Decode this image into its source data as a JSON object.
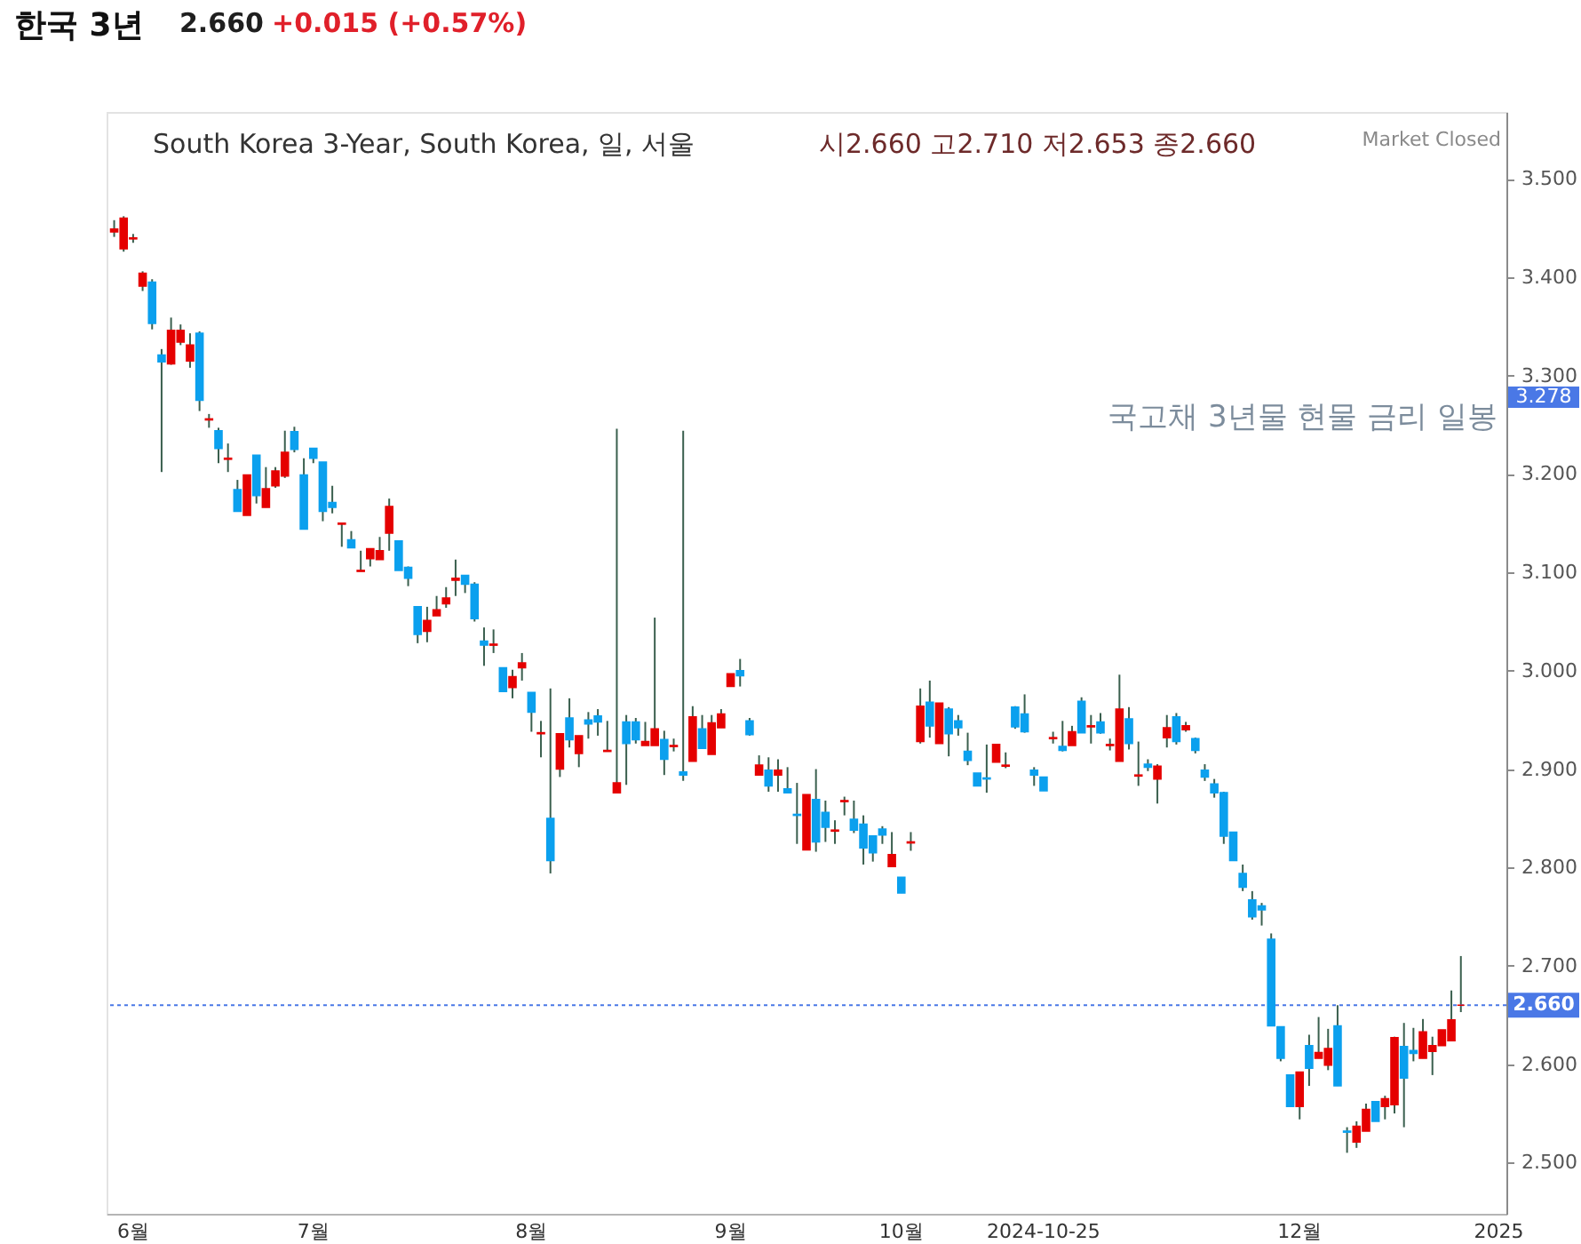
{
  "chart_data": {
    "type": "candlestick",
    "title": "한국 3년",
    "subtitle": "South Korea 3-Year, South Korea, 일, 서울",
    "annotations": [
      "2.660",
      "+0.015 (+0.57%)",
      "시2.660 고2.710 저2.653 종2.660",
      "Market Closed",
      "국고채 3년물 현물 금리 일봉",
      {
        "text": "3.278",
        "y": 3.278
      }
    ],
    "categories": [
      null,
      null,
      "6월",
      null,
      null,
      null,
      null,
      null,
      null,
      null,
      null,
      null,
      null,
      null,
      null,
      null,
      null,
      null,
      null,
      null,
      null,
      "7월",
      null,
      null,
      null,
      null,
      null,
      null,
      null,
      null,
      null,
      null,
      null,
      null,
      null,
      null,
      null,
      null,
      null,
      null,
      null,
      null,
      null,
      null,
      "8월",
      null,
      null,
      null,
      null,
      null,
      null,
      null,
      null,
      null,
      null,
      null,
      null,
      null,
      null,
      null,
      null,
      null,
      null,
      null,
      null,
      "9월",
      null,
      null,
      null,
      null,
      null,
      null,
      null,
      null,
      null,
      null,
      null,
      null,
      null,
      null,
      null,
      null,
      null,
      "10월",
      null,
      null,
      null,
      null,
      null,
      null,
      null,
      null,
      null,
      null,
      null,
      null,
      null,
      null,
      "2024-10-25",
      null,
      null,
      null,
      null,
      null,
      null,
      null,
      null,
      null,
      null,
      null,
      null,
      null,
      null,
      null,
      null,
      null,
      null,
      null,
      null,
      null,
      null,
      null,
      null,
      null,
      null,
      "12월",
      null,
      null,
      null,
      null,
      null,
      null,
      null,
      null,
      null,
      null,
      null,
      null,
      null,
      null,
      null,
      null,
      null,
      null,
      null,
      null,
      "2025"
    ],
    "ohlc": [
      [
        3.446,
        3.458,
        3.441,
        3.449
      ],
      [
        3.429,
        3.462,
        3.426,
        3.46
      ],
      [
        3.439,
        3.444,
        3.435,
        3.44
      ],
      [
        3.391,
        3.406,
        3.386,
        3.404
      ],
      [
        3.395,
        3.398,
        3.347,
        3.353
      ],
      [
        3.321,
        3.327,
        3.202,
        3.314
      ],
      [
        3.312,
        3.359,
        3.311,
        3.346
      ],
      [
        3.334,
        3.352,
        3.331,
        3.346
      ],
      [
        3.315,
        3.343,
        3.308,
        3.331
      ],
      [
        3.343,
        3.345,
        3.264,
        3.275
      ],
      [
        3.255,
        3.261,
        3.247,
        3.256
      ],
      [
        3.244,
        3.247,
        3.211,
        3.226
      ],
      [
        3.215,
        3.231,
        3.202,
        3.216
      ],
      [
        3.184,
        3.194,
        3.162,
        3.162
      ],
      [
        3.158,
        3.199,
        3.158,
        3.199
      ],
      [
        3.219,
        3.219,
        3.17,
        3.178
      ],
      [
        3.166,
        3.207,
        3.166,
        3.185
      ],
      [
        3.188,
        3.207,
        3.186,
        3.203
      ],
      [
        3.198,
        3.244,
        3.196,
        3.222
      ],
      [
        3.243,
        3.248,
        3.222,
        3.225
      ],
      [
        3.199,
        3.216,
        3.144,
        3.144
      ],
      [
        3.226,
        3.226,
        3.211,
        3.216
      ],
      [
        3.212,
        3.212,
        3.152,
        3.162
      ],
      [
        3.171,
        3.188,
        3.16,
        3.166
      ],
      [
        3.149,
        3.15,
        3.126,
        3.15
      ],
      [
        3.133,
        3.142,
        3.125,
        3.125
      ],
      [
        3.101,
        3.122,
        3.101,
        3.102
      ],
      [
        3.114,
        3.124,
        3.106,
        3.124
      ],
      [
        3.113,
        3.136,
        3.113,
        3.122
      ],
      [
        3.14,
        3.175,
        3.122,
        3.167
      ],
      [
        3.132,
        3.132,
        3.102,
        3.102
      ],
      [
        3.105,
        3.106,
        3.086,
        3.094
      ],
      [
        3.065,
        3.065,
        3.028,
        3.037
      ],
      [
        3.04,
        3.065,
        3.029,
        3.051
      ],
      [
        3.056,
        3.076,
        3.056,
        3.062
      ],
      [
        3.068,
        3.085,
        3.064,
        3.074
      ],
      [
        3.092,
        3.113,
        3.076,
        3.094
      ],
      [
        3.097,
        3.097,
        3.079,
        3.088
      ],
      [
        3.088,
        3.09,
        3.05,
        3.053
      ],
      [
        3.03,
        3.044,
        3.005,
        3.026
      ],
      [
        3.026,
        3.042,
        3.018,
        3.027
      ],
      [
        3.003,
        3.003,
        2.979,
        2.979
      ],
      [
        2.983,
        3.001,
        2.972,
        2.994
      ],
      [
        3.003,
        3.018,
        2.99,
        3.008
      ],
      [
        2.978,
        2.978,
        2.938,
        2.958
      ],
      [
        2.936,
        2.949,
        2.912,
        2.937
      ],
      [
        2.85,
        2.982,
        2.794,
        2.807
      ],
      [
        2.9,
        2.936,
        2.892,
        2.936
      ],
      [
        2.952,
        2.972,
        2.922,
        2.93
      ],
      [
        2.916,
        2.934,
        2.902,
        2.934
      ],
      [
        2.95,
        2.958,
        2.931,
        2.946
      ],
      [
        2.954,
        2.961,
        2.934,
        2.948
      ],
      [
        2.918,
        2.949,
        2.918,
        2.919
      ],
      [
        2.876,
        3.246,
        2.876,
        2.886
      ],
      [
        2.948,
        2.955,
        2.884,
        2.926
      ],
      [
        2.948,
        2.952,
        2.926,
        2.93
      ],
      [
        2.924,
        2.948,
        2.924,
        2.928
      ],
      [
        2.924,
        3.054,
        2.924,
        2.941
      ],
      [
        2.93,
        2.939,
        2.894,
        2.91
      ],
      [
        2.923,
        2.931,
        2.918,
        2.924
      ],
      [
        2.897,
        3.244,
        2.888,
        2.894
      ],
      [
        2.908,
        2.964,
        2.908,
        2.953
      ],
      [
        2.941,
        2.955,
        2.921,
        2.921
      ],
      [
        2.915,
        2.955,
        2.915,
        2.947
      ],
      [
        2.942,
        2.961,
        2.942,
        2.956
      ],
      [
        2.984,
        2.997,
        2.984,
        2.997
      ],
      [
        3.0,
        3.012,
        2.984,
        2.995
      ],
      [
        2.949,
        2.952,
        2.934,
        2.935
      ],
      [
        2.894,
        2.914,
        2.894,
        2.904
      ],
      [
        2.899,
        2.912,
        2.877,
        2.883
      ],
      [
        2.894,
        2.91,
        2.877,
        2.899
      ],
      [
        2.88,
        2.902,
        2.876,
        2.876
      ],
      [
        2.854,
        2.886,
        2.824,
        2.853
      ],
      [
        2.818,
        2.874,
        2.818,
        2.874
      ],
      [
        2.869,
        2.9,
        2.816,
        2.826
      ],
      [
        2.856,
        2.868,
        2.826,
        2.841
      ],
      [
        2.837,
        2.848,
        2.824,
        2.838
      ],
      [
        2.867,
        2.872,
        2.853,
        2.868
      ],
      [
        2.849,
        2.868,
        2.835,
        2.838
      ],
      [
        2.844,
        2.853,
        2.803,
        2.82
      ],
      [
        2.832,
        2.832,
        2.806,
        2.815
      ],
      [
        2.839,
        2.842,
        2.824,
        2.833
      ],
      [
        2.801,
        2.836,
        2.801,
        2.813
      ],
      [
        2.79,
        2.79,
        2.774,
        2.774
      ],
      [
        2.825,
        2.836,
        2.817,
        2.826
      ],
      [
        2.928,
        2.982,
        2.926,
        2.964
      ],
      [
        2.968,
        2.99,
        2.932,
        2.944
      ],
      [
        2.926,
        2.967,
        2.926,
        2.967
      ],
      [
        2.961,
        2.963,
        2.913,
        2.936
      ],
      [
        2.949,
        2.955,
        2.934,
        2.942
      ],
      [
        2.918,
        2.937,
        2.904,
        2.909
      ],
      [
        2.896,
        2.896,
        2.883,
        2.883
      ],
      [
        2.891,
        2.925,
        2.876,
        2.89
      ],
      [
        2.907,
        2.925,
        2.907,
        2.925
      ],
      [
        2.903,
        2.917,
        2.901,
        2.904
      ],
      [
        2.963,
        2.964,
        2.941,
        2.943
      ],
      [
        2.956,
        2.976,
        2.937,
        2.938
      ],
      [
        2.899,
        2.902,
        2.883,
        2.894
      ],
      [
        2.892,
        2.892,
        2.878,
        2.878
      ],
      [
        2.931,
        2.938,
        2.926,
        2.932
      ],
      [
        2.923,
        2.949,
        2.918,
        2.919
      ],
      [
        2.924,
        2.944,
        2.924,
        2.938
      ],
      [
        2.969,
        2.973,
        2.937,
        2.937
      ],
      [
        2.943,
        2.955,
        2.926,
        2.944
      ],
      [
        2.948,
        2.957,
        2.936,
        2.937
      ],
      [
        2.924,
        2.931,
        2.919,
        2.925
      ],
      [
        2.908,
        2.996,
        2.908,
        2.961
      ],
      [
        2.951,
        2.963,
        2.92,
        2.926
      ],
      [
        2.893,
        2.928,
        2.883,
        2.894
      ],
      [
        2.905,
        2.91,
        2.898,
        2.902
      ],
      [
        2.89,
        2.905,
        2.865,
        2.903
      ],
      [
        2.932,
        2.955,
        2.922,
        2.942
      ],
      [
        2.953,
        2.957,
        2.925,
        2.928
      ],
      [
        2.94,
        2.948,
        2.938,
        2.944
      ],
      [
        2.931,
        2.932,
        2.916,
        2.919
      ],
      [
        2.899,
        2.905,
        2.888,
        2.892
      ],
      [
        2.885,
        2.89,
        2.871,
        2.876
      ],
      [
        2.876,
        2.877,
        2.824,
        2.832
      ],
      [
        2.836,
        2.836,
        2.807,
        2.807
      ],
      [
        2.794,
        2.803,
        2.776,
        2.78
      ],
      [
        2.767,
        2.776,
        2.747,
        2.75
      ],
      [
        2.761,
        2.764,
        2.741,
        2.757
      ],
      [
        2.727,
        2.733,
        2.639,
        2.639
      ],
      [
        2.638,
        2.638,
        2.603,
        2.606
      ],
      [
        2.589,
        2.589,
        2.557,
        2.557
      ],
      [
        2.557,
        2.592,
        2.544,
        2.592
      ],
      [
        2.619,
        2.63,
        2.578,
        2.596
      ],
      [
        2.606,
        2.648,
        2.606,
        2.612
      ],
      [
        2.599,
        2.636,
        2.594,
        2.616
      ],
      [
        2.639,
        2.66,
        2.578,
        2.578
      ],
      [
        2.532,
        2.536,
        2.51,
        2.531
      ],
      [
        2.521,
        2.542,
        2.515,
        2.537
      ],
      [
        2.532,
        2.56,
        2.532,
        2.554
      ],
      [
        2.562,
        2.562,
        2.542,
        2.542
      ],
      [
        2.557,
        2.568,
        2.544,
        2.565
      ],
      [
        2.559,
        2.628,
        2.55,
        2.627
      ],
      [
        2.618,
        2.642,
        2.536,
        2.586
      ],
      [
        2.614,
        2.637,
        2.603,
        2.611
      ],
      [
        2.606,
        2.646,
        2.606,
        2.633
      ],
      [
        2.613,
        2.628,
        2.589,
        2.619
      ],
      [
        2.619,
        2.635,
        2.619,
        2.635
      ],
      [
        2.624,
        2.675,
        2.624,
        2.645
      ],
      [
        2.66,
        2.71,
        2.653,
        2.66
      ],
      null,
      null,
      null,
      null
    ],
    "colors": [
      "#e50000",
      "#e50000",
      "#e50000",
      "#e50000",
      "#0ba0ee",
      "#0ba0ee",
      "#e50000",
      "#e50000",
      "#e50000",
      "#0ba0ee",
      "#e50000",
      "#0ba0ee",
      "#e50000",
      "#0ba0ee",
      "#e50000",
      "#0ba0ee",
      "#e50000",
      "#e50000",
      "#e50000",
      "#0ba0ee",
      "#0ba0ee",
      "#0ba0ee",
      "#0ba0ee",
      "#0ba0ee",
      "#e50000",
      "#0ba0ee",
      "#e50000",
      "#e50000",
      "#e50000",
      "#e50000",
      "#0ba0ee",
      "#0ba0ee",
      "#0ba0ee",
      "#e50000",
      "#e50000",
      "#e50000",
      "#e50000",
      "#0ba0ee",
      "#0ba0ee",
      "#0ba0ee",
      "#e50000",
      "#0ba0ee",
      "#e50000",
      "#e50000",
      "#0ba0ee",
      "#e50000",
      "#0ba0ee",
      "#e50000",
      "#0ba0ee",
      "#e50000",
      "#0ba0ee",
      "#0ba0ee",
      "#e50000",
      "#e50000",
      "#0ba0ee",
      "#0ba0ee",
      "#e50000",
      "#e50000",
      "#0ba0ee",
      "#e50000",
      "#0ba0ee",
      "#e50000",
      "#0ba0ee",
      "#e50000",
      "#e50000",
      "#e50000",
      "#0ba0ee",
      "#0ba0ee",
      "#e50000",
      "#0ba0ee",
      "#e50000",
      "#0ba0ee",
      "#0ba0ee",
      "#e50000",
      "#0ba0ee",
      "#0ba0ee",
      "#e50000",
      "#e50000",
      "#0ba0ee",
      "#0ba0ee",
      "#0ba0ee",
      "#0ba0ee",
      "#e50000",
      "#0ba0ee",
      "#e50000",
      "#e50000",
      "#0ba0ee",
      "#e50000",
      "#0ba0ee",
      "#0ba0ee",
      "#0ba0ee",
      "#0ba0ee",
      "#0ba0ee",
      "#e50000",
      "#e50000",
      "#0ba0ee",
      "#0ba0ee",
      "#0ba0ee",
      "#0ba0ee",
      "#e50000",
      "#0ba0ee",
      "#e50000",
      "#0ba0ee",
      "#e50000",
      "#0ba0ee",
      "#e50000",
      "#e50000",
      "#0ba0ee",
      "#e50000",
      "#0ba0ee",
      "#e50000",
      "#e50000",
      "#0ba0ee",
      "#e50000",
      "#0ba0ee",
      "#0ba0ee",
      "#0ba0ee",
      "#0ba0ee",
      "#0ba0ee",
      "#0ba0ee",
      "#0ba0ee",
      "#0ba0ee",
      "#0ba0ee",
      "#0ba0ee",
      "#0ba0ee",
      "#e50000",
      "#0ba0ee",
      "#e50000",
      "#e50000",
      "#0ba0ee",
      "#0ba0ee",
      "#e50000",
      "#e50000",
      "#0ba0ee",
      "#e50000",
      "#e50000",
      "#0ba0ee",
      "#0ba0ee",
      "#e50000",
      "#e50000",
      "#e50000",
      "#e50000",
      "#e50000",
      null,
      null,
      null,
      null
    ],
    "ylim": [
      2.448,
      3.568
    ],
    "yticks": [
      {
        "value": 2.5,
        "label": "2.500"
      },
      {
        "value": 2.6,
        "label": "2.600"
      },
      {
        "value": 2.7,
        "label": "2.700"
      },
      {
        "value": 2.8,
        "label": "2.800"
      },
      {
        "value": 2.9,
        "label": "2.900"
      },
      {
        "value": 3.0,
        "label": "3.000"
      },
      {
        "value": 3.1,
        "label": "3.100"
      },
      {
        "value": 3.2,
        "label": "3.200"
      },
      {
        "value": 3.3,
        "label": "3.300"
      },
      {
        "value": 3.4,
        "label": "3.400"
      },
      {
        "value": 3.5,
        "label": "3.500"
      }
    ],
    "ref_lines": [
      {
        "axis": "y",
        "value": 2.66,
        "label": "2.660",
        "color": "#4a78e6",
        "line_style": "dotted"
      }
    ]
  }
}
